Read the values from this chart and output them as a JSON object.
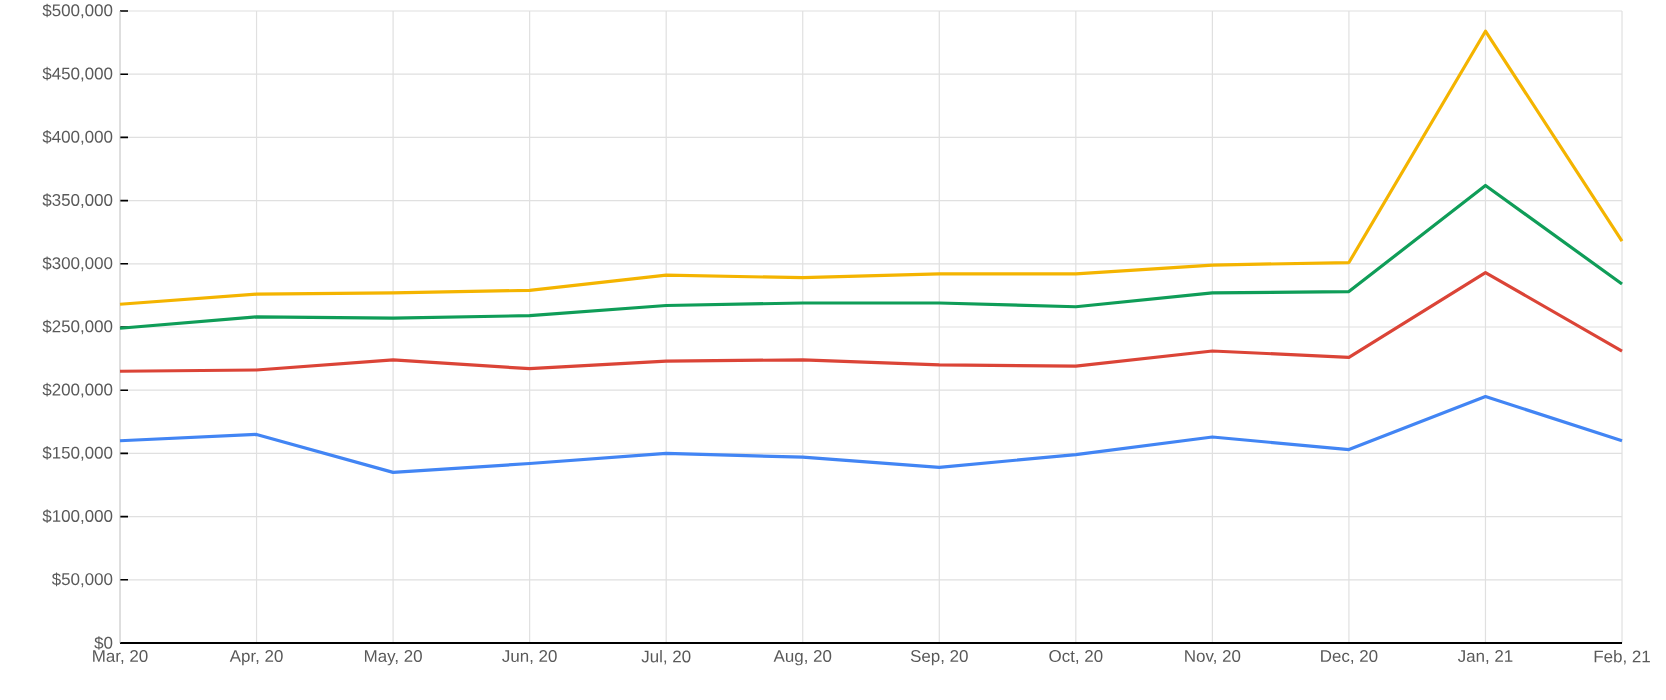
{
  "chart_data": {
    "type": "line",
    "categories": [
      "Mar, 20",
      "Apr, 20",
      "May, 20",
      "Jun, 20",
      "Jul, 20",
      "Aug, 20",
      "Sep, 20",
      "Oct, 20",
      "Nov, 20",
      "Dec, 20",
      "Jan, 21",
      "Feb, 21"
    ],
    "series": [
      {
        "color": "#4285f4",
        "values": [
          160000,
          165000,
          135000,
          142000,
          150000,
          147000,
          139000,
          149000,
          163000,
          153000,
          195000,
          160000
        ]
      },
      {
        "color": "#db4437",
        "values": [
          215000,
          216000,
          224000,
          217000,
          223000,
          224000,
          220000,
          219000,
          231000,
          226000,
          293000,
          231000
        ]
      },
      {
        "color": "#0f9d58",
        "values": [
          249000,
          258000,
          257000,
          259000,
          267000,
          269000,
          269000,
          266000,
          277000,
          278000,
          362000,
          284000
        ]
      },
      {
        "color": "#f4b400",
        "values": [
          268000,
          276000,
          277000,
          279000,
          291000,
          289000,
          292000,
          292000,
          299000,
          301000,
          484000,
          318000
        ]
      }
    ],
    "ylim": [
      0,
      500000
    ],
    "yticks": [
      {
        "value": 0,
        "label": "$0"
      },
      {
        "value": 50000,
        "label": "$50,000"
      },
      {
        "value": 100000,
        "label": "$100,000"
      },
      {
        "value": 150000,
        "label": "$150,000"
      },
      {
        "value": 200000,
        "label": "$200,000"
      },
      {
        "value": 250000,
        "label": "$250,000"
      },
      {
        "value": 300000,
        "label": "$300,000"
      },
      {
        "value": 350000,
        "label": "$350,000"
      },
      {
        "value": 400000,
        "label": "$400,000"
      },
      {
        "value": 450000,
        "label": "$450,000"
      },
      {
        "value": 500000,
        "label": "$500,000"
      }
    ],
    "grid": true,
    "line_style": "solid"
  }
}
